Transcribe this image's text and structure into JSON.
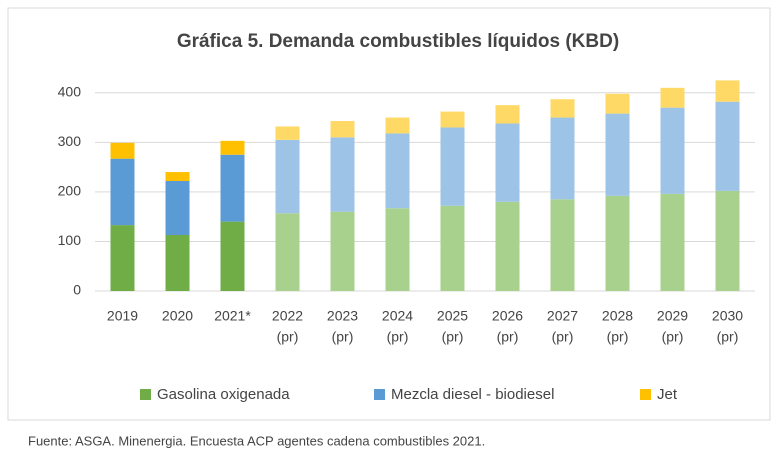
{
  "chart_data": {
    "type": "stacked_bar",
    "title": "Gráfica 5. Demanda combustibles líquidos (KBD)",
    "categories": [
      [
        "2019"
      ],
      [
        "2020"
      ],
      [
        "2021*"
      ],
      [
        "2022",
        "(pr)"
      ],
      [
        "2023",
        "(pr)"
      ],
      [
        "2024",
        "(pr)"
      ],
      [
        "2025",
        "(pr)"
      ],
      [
        "2026",
        "(pr)"
      ],
      [
        "2027",
        "(pr)"
      ],
      [
        "2028",
        "(pr)"
      ],
      [
        "2029",
        "(pr)"
      ],
      [
        "2030",
        "(pr)"
      ]
    ],
    "series": [
      {
        "name": "Gasolina oxigenada",
        "color": "#70ad47",
        "light_color": "#a9d18e",
        "values": [
          133,
          113,
          140,
          157,
          160,
          167,
          172,
          180,
          185,
          192,
          196,
          202
        ]
      },
      {
        "name": "Mezcla diesel - biodiesel",
        "color": "#5b9bd5",
        "light_color": "#9dc3e6",
        "values": [
          134,
          109,
          135,
          148,
          150,
          151,
          158,
          158,
          165,
          166,
          174,
          180
        ]
      },
      {
        "name": "Jet",
        "color": "#ffc000",
        "light_color": "#ffd966",
        "values": [
          32,
          18,
          28,
          27,
          33,
          32,
          32,
          37,
          37,
          40,
          40,
          43
        ]
      }
    ],
    "ylim": [
      0,
      450
    ],
    "yticks": [
      0,
      100,
      200,
      300,
      400
    ],
    "grid": true,
    "source": "Fuente: ASGA. Minenergia. Encuesta ACP agentes cadena combustibles 2021."
  }
}
